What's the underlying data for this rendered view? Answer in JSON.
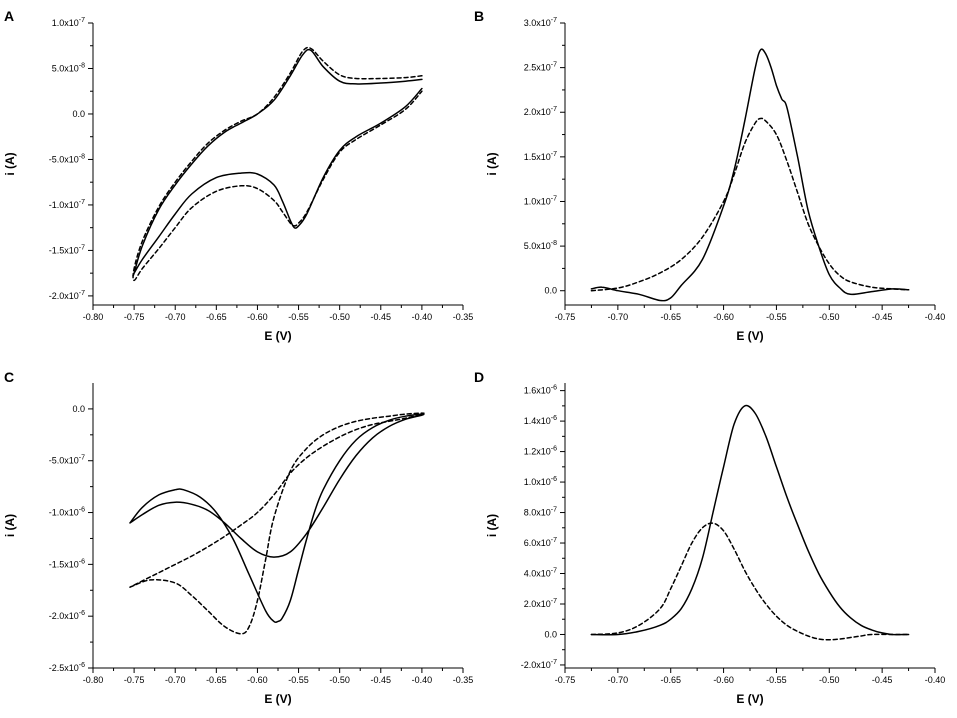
{
  "chart_data": [
    {
      "panel": "A",
      "type": "line",
      "title": "",
      "xlabel": "E (V)",
      "ylabel": "i (A)",
      "xlim": [
        -0.8,
        -0.35
      ],
      "ylim": [
        -2.1e-07,
        1e-07
      ],
      "x_ticks": [
        -0.8,
        -0.75,
        -0.7,
        -0.65,
        -0.6,
        -0.55,
        -0.5,
        -0.45,
        -0.4,
        -0.35
      ],
      "x_tick_labels": [
        "-0.80",
        "-0.75",
        "-0.70",
        "-0.65",
        "-0.60",
        "-0.55",
        "-0.50",
        "-0.45",
        "-0.40",
        "-0.35"
      ],
      "y_ticks": [
        1e-07,
        5e-08,
        0,
        -5e-08,
        -1e-07,
        -1.5e-07,
        -2e-07
      ],
      "y_tick_labels": [
        "1.0x10-7",
        "5.0x10-8",
        "0.0",
        "-5.0x10-8",
        "-1.0x10-7",
        "-1.5x10-7",
        "-2.0x10-7"
      ],
      "series": [
        {
          "name": "solid",
          "style": "solid",
          "x": [
            -0.4,
            -0.42,
            -0.45,
            -0.48,
            -0.5,
            -0.52,
            -0.535,
            -0.545,
            -0.56,
            -0.58,
            -0.6,
            -0.62,
            -0.64,
            -0.66,
            -0.68,
            -0.7,
            -0.72,
            -0.74,
            -0.75,
            -0.75,
            -0.74,
            -0.72,
            -0.7,
            -0.68,
            -0.65,
            -0.62,
            -0.6,
            -0.58,
            -0.57,
            -0.56,
            -0.555,
            -0.55,
            -0.54,
            -0.52,
            -0.5,
            -0.48,
            -0.45,
            -0.42,
            -0.4
          ],
          "y": [
            3.8e-08,
            3.6e-08,
            3.4e-08,
            3.3e-08,
            3.6e-08,
            5.2e-08,
            7e-08,
            6.5e-08,
            4.2e-08,
            1.5e-08,
            0,
            -1e-08,
            -2e-08,
            -3.5e-08,
            -5.5e-08,
            -7.8e-08,
            -1.05e-07,
            -1.45e-07,
            -1.75e-07,
            -1.75e-07,
            -1.6e-07,
            -1.35e-07,
            -1.1e-07,
            -8.8e-08,
            -7e-08,
            -6.5e-08,
            -6.6e-08,
            -7.8e-08,
            -9.5e-08,
            -1.17e-07,
            -1.25e-07,
            -1.23e-07,
            -1.1e-07,
            -7e-08,
            -4e-08,
            -2.5e-08,
            -1e-08,
            8e-09,
            2.8e-08
          ]
        },
        {
          "name": "dashed",
          "style": "dashed",
          "x": [
            -0.4,
            -0.42,
            -0.45,
            -0.48,
            -0.5,
            -0.52,
            -0.535,
            -0.545,
            -0.56,
            -0.58,
            -0.6,
            -0.62,
            -0.64,
            -0.66,
            -0.68,
            -0.7,
            -0.72,
            -0.74,
            -0.75,
            -0.75,
            -0.74,
            -0.72,
            -0.7,
            -0.68,
            -0.65,
            -0.62,
            -0.6,
            -0.58,
            -0.57,
            -0.56,
            -0.555,
            -0.55,
            -0.54,
            -0.52,
            -0.5,
            -0.48,
            -0.45,
            -0.42,
            -0.4
          ],
          "y": [
            4.2e-08,
            4e-08,
            3.9e-08,
            3.9e-08,
            4.3e-08,
            5.8e-08,
            7.2e-08,
            6.9e-08,
            4.5e-08,
            1.8e-08,
            0,
            -8e-09,
            -1.8e-08,
            -3.2e-08,
            -5.2e-08,
            -7.5e-08,
            -1.02e-07,
            -1.4e-07,
            -1.7e-07,
            -1.83e-07,
            -1.7e-07,
            -1.48e-07,
            -1.25e-07,
            -1.03e-07,
            -8.5e-08,
            -7.9e-08,
            -8.2e-08,
            -9.5e-08,
            -1.07e-07,
            -1.2e-07,
            -1.23e-07,
            -1.2e-07,
            -1.08e-07,
            -7.2e-08,
            -4.2e-08,
            -2.8e-08,
            -1.2e-08,
            5e-09,
            2.5e-08
          ]
        }
      ]
    },
    {
      "panel": "B",
      "type": "line",
      "title": "",
      "xlabel": "E (V)",
      "ylabel": "i (A)",
      "xlim": [
        -0.75,
        -0.4
      ],
      "ylim": [
        -1.6e-08,
        3e-07
      ],
      "x_ticks": [
        -0.75,
        -0.7,
        -0.65,
        -0.6,
        -0.55,
        -0.5,
        -0.45,
        -0.4
      ],
      "x_tick_labels": [
        "-0.75",
        "-0.70",
        "-0.65",
        "-0.60",
        "-0.55",
        "-0.50",
        "-0.45",
        "-0.40"
      ],
      "y_ticks": [
        3e-07,
        2.5e-07,
        2e-07,
        1.5e-07,
        1e-07,
        5e-08,
        0
      ],
      "y_tick_labels": [
        "3.0x10-7",
        "2.5x10-7",
        "2.0x10-7",
        "1.5x10-7",
        "1.0x10-7",
        "5.0x10-8",
        "0.0"
      ],
      "series": [
        {
          "name": "solid",
          "style": "solid",
          "x": [
            -0.725,
            -0.715,
            -0.7,
            -0.68,
            -0.66,
            -0.65,
            -0.64,
            -0.62,
            -0.6,
            -0.59,
            -0.58,
            -0.57,
            -0.565,
            -0.56,
            -0.555,
            -0.55,
            -0.545,
            -0.54,
            -0.53,
            -0.52,
            -0.51,
            -0.5,
            -0.49,
            -0.48,
            -0.46,
            -0.44,
            -0.425
          ],
          "y": [
            2e-09,
            4e-09,
            0,
            -4e-09,
            -1.1e-08,
            -8e-09,
            6e-09,
            3.5e-08,
            9.5e-08,
            1.35e-07,
            1.9e-07,
            2.5e-07,
            2.7e-07,
            2.65e-07,
            2.5e-07,
            2.3e-07,
            2.15e-07,
            2.05e-07,
            1.5e-07,
            9e-08,
            5e-08,
            1.8e-08,
            3e-09,
            -4e-09,
            -1e-09,
            2e-09,
            1e-09
          ]
        },
        {
          "name": "dashed",
          "style": "dashed",
          "x": [
            -0.725,
            -0.7,
            -0.68,
            -0.66,
            -0.64,
            -0.62,
            -0.6,
            -0.59,
            -0.58,
            -0.57,
            -0.565,
            -0.56,
            -0.55,
            -0.54,
            -0.53,
            -0.52,
            -0.51,
            -0.5,
            -0.49,
            -0.48,
            -0.46,
            -0.44,
            -0.425
          ],
          "y": [
            0,
            3e-09,
            1e-08,
            2e-08,
            3.5e-08,
            6e-08,
            1e-07,
            1.3e-07,
            1.65e-07,
            1.88e-07,
            1.93e-07,
            1.9e-07,
            1.75e-07,
            1.45e-07,
            1.1e-07,
            7.5e-08,
            5e-08,
            3e-08,
            1.7e-08,
            1e-08,
            4e-09,
            2e-09,
            1e-09
          ]
        }
      ]
    },
    {
      "panel": "C",
      "type": "line",
      "title": "",
      "xlabel": "E (V)",
      "ylabel": "i (A)",
      "xlim": [
        -0.8,
        -0.35
      ],
      "ylim": [
        -2.5e-06,
        2.5e-07
      ],
      "x_ticks": [
        -0.8,
        -0.75,
        -0.7,
        -0.65,
        -0.6,
        -0.55,
        -0.5,
        -0.45,
        -0.4,
        -0.35
      ],
      "x_tick_labels": [
        "-0.80",
        "-0.75",
        "-0.70",
        "-0.65",
        "-0.60",
        "-0.55",
        "-0.50",
        "-0.45",
        "-0.40",
        "-0.35"
      ],
      "y_ticks": [
        0,
        -5e-07,
        -1e-06,
        -1.5e-06,
        -2e-06,
        -2.5e-06
      ],
      "y_tick_labels": [
        "0.0",
        "-5.0x10-7",
        "-1.0x10-6",
        "-1.5x10-6",
        "-2.0x10-6",
        "-2.5x10-6"
      ],
      "series": [
        {
          "name": "solid",
          "style": "solid",
          "x": [
            -0.755,
            -0.74,
            -0.72,
            -0.7,
            -0.69,
            -0.67,
            -0.65,
            -0.63,
            -0.61,
            -0.59,
            -0.58,
            -0.575,
            -0.57,
            -0.56,
            -0.55,
            -0.54,
            -0.53,
            -0.52,
            -0.5,
            -0.48,
            -0.46,
            -0.44,
            -0.42,
            -0.4,
            -0.4,
            -0.42,
            -0.44,
            -0.46,
            -0.48,
            -0.5,
            -0.52,
            -0.54,
            -0.56,
            -0.58,
            -0.6,
            -0.62,
            -0.64,
            -0.66,
            -0.68,
            -0.7,
            -0.72,
            -0.74,
            -0.755
          ],
          "y": [
            -1.1e-06,
            -9.5e-07,
            -8.3e-07,
            -7.8e-07,
            -7.8e-07,
            -8.5e-07,
            -1e-06,
            -1.25e-06,
            -1.6e-06,
            -1.95e-06,
            -2.05e-06,
            -2.05e-06,
            -2.02e-06,
            -1.85e-06,
            -1.55e-06,
            -1.25e-06,
            -9.8e-07,
            -7.8e-07,
            -5e-07,
            -3e-07,
            -1.8e-07,
            -1.1e-07,
            -7e-08,
            -5e-08,
            -6e-08,
            -1e-07,
            -1.7e-07,
            -2.8e-07,
            -4.5e-07,
            -6.8e-07,
            -9.5e-07,
            -1.2e-06,
            -1.38e-06,
            -1.43e-06,
            -1.38e-06,
            -1.25e-06,
            -1.1e-06,
            -9.8e-07,
            -9.2e-07,
            -9e-07,
            -9.3e-07,
            -1.02e-06,
            -1.1e-06
          ]
        },
        {
          "name": "dashed",
          "style": "dashed",
          "x": [
            -0.755,
            -0.73,
            -0.7,
            -0.68,
            -0.66,
            -0.64,
            -0.62,
            -0.61,
            -0.6,
            -0.59,
            -0.58,
            -0.56,
            -0.54,
            -0.52,
            -0.5,
            -0.48,
            -0.46,
            -0.44,
            -0.42,
            -0.4,
            -0.4,
            -0.42,
            -0.44,
            -0.46,
            -0.48,
            -0.5,
            -0.52,
            -0.54,
            -0.56,
            -0.58,
            -0.6,
            -0.62,
            -0.64,
            -0.66,
            -0.68,
            -0.7,
            -0.72,
            -0.74,
            -0.755
          ],
          "y": [
            -1.72e-06,
            -1.65e-06,
            -1.68e-06,
            -1.8e-06,
            -1.95e-06,
            -2.1e-06,
            -2.17e-06,
            -2.1e-06,
            -1.85e-06,
            -1.45e-06,
            -1.05e-06,
            -6e-07,
            -3.8e-07,
            -2.5e-07,
            -1.7e-07,
            -1.2e-07,
            -9e-08,
            -7e-08,
            -5e-08,
            -4e-08,
            -5e-08,
            -9e-08,
            -1.2e-07,
            -1.5e-07,
            -2e-07,
            -2.7e-07,
            -3.6e-07,
            -4.7e-07,
            -6.2e-07,
            -8.3e-07,
            -1e-06,
            -1.12e-06,
            -1.23e-06,
            -1.33e-06,
            -1.42e-06,
            -1.5e-06,
            -1.58e-06,
            -1.66e-06,
            -1.72e-06
          ]
        }
      ]
    },
    {
      "panel": "D",
      "type": "line",
      "title": "",
      "xlabel": "E (V)",
      "ylabel": "i (A)",
      "xlim": [
        -0.75,
        -0.4
      ],
      "ylim": [
        -2.2e-07,
        1.65e-06
      ],
      "x_ticks": [
        -0.75,
        -0.7,
        -0.65,
        -0.6,
        -0.55,
        -0.5,
        -0.45,
        -0.4
      ],
      "x_tick_labels": [
        "-0.75",
        "-0.70",
        "-0.65",
        "-0.60",
        "-0.55",
        "-0.50",
        "-0.45",
        "-0.40"
      ],
      "y_ticks": [
        1.6e-06,
        1.4e-06,
        1.2e-06,
        1e-06,
        8e-07,
        6e-07,
        4e-07,
        2e-07,
        0,
        -2e-07
      ],
      "y_tick_labels": [
        "1.6x10-6",
        "1.4x10-6",
        "1.2x10-6",
        "1.0x10-6",
        "8.0x10-7",
        "6.0x10-7",
        "4.0x10-7",
        "2.0x10-7",
        "0.0",
        "-2.0x10-7"
      ],
      "series": [
        {
          "name": "solid",
          "style": "solid",
          "x": [
            -0.725,
            -0.7,
            -0.68,
            -0.66,
            -0.65,
            -0.64,
            -0.63,
            -0.62,
            -0.61,
            -0.6,
            -0.59,
            -0.58,
            -0.57,
            -0.56,
            -0.55,
            -0.54,
            -0.53,
            -0.52,
            -0.51,
            -0.5,
            -0.49,
            -0.48,
            -0.47,
            -0.46,
            -0.45,
            -0.44,
            -0.425
          ],
          "y": [
            0,
            0,
            2e-08,
            6e-08,
            1e-07,
            1.7e-07,
            3e-07,
            5e-07,
            8e-07,
            1.1e-06,
            1.38e-06,
            1.5e-06,
            1.45e-06,
            1.3e-06,
            1.1e-06,
            9e-07,
            7.2e-07,
            5.5e-07,
            4e-07,
            2.8e-07,
            1.8e-07,
            1.1e-07,
            6e-08,
            3e-08,
            1e-08,
            0,
            0
          ]
        },
        {
          "name": "dashed",
          "style": "dashed",
          "x": [
            -0.725,
            -0.7,
            -0.68,
            -0.66,
            -0.65,
            -0.64,
            -0.63,
            -0.62,
            -0.61,
            -0.6,
            -0.59,
            -0.58,
            -0.57,
            -0.56,
            -0.55,
            -0.54,
            -0.53,
            -0.52,
            -0.51,
            -0.5,
            -0.49,
            -0.48,
            -0.47,
            -0.46,
            -0.44,
            -0.425
          ],
          "y": [
            0,
            1e-08,
            6e-08,
            1.7e-07,
            3e-07,
            4.5e-07,
            6e-07,
            7e-07,
            7.3e-07,
            6.8e-07,
            5.6e-07,
            4.2e-07,
            3e-07,
            2e-07,
            1.2e-07,
            6e-08,
            2e-08,
            -1e-08,
            -3e-08,
            -3.5e-08,
            -3e-08,
            -2e-08,
            -1e-08,
            0,
            0,
            0
          ]
        }
      ]
    }
  ]
}
